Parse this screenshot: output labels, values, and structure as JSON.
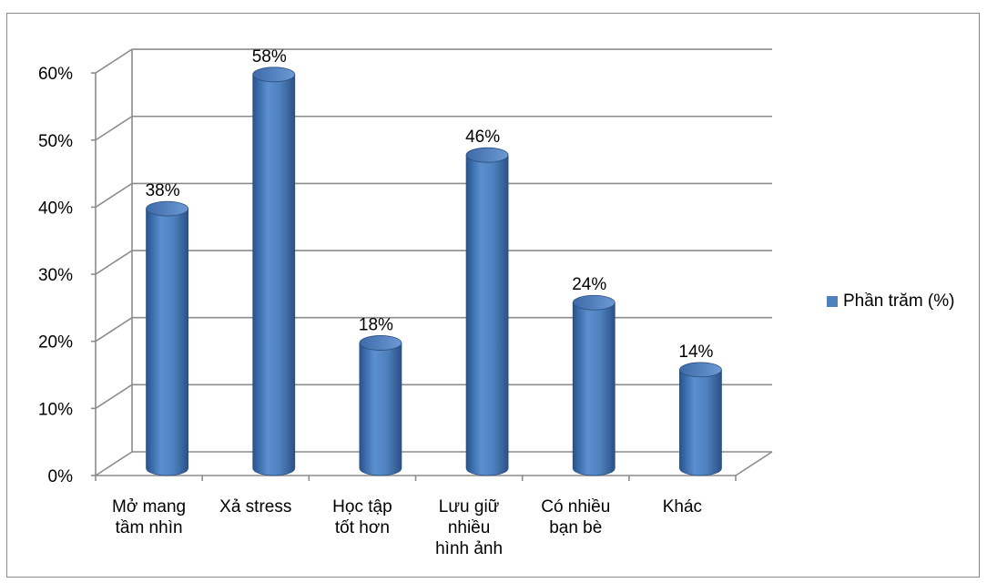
{
  "chart_data": {
    "type": "bar",
    "categories": [
      [
        "Mở mang",
        "tầm nhìn"
      ],
      [
        "Xả stress"
      ],
      [
        "Học tập",
        "tốt hơn"
      ],
      [
        "Lưu giữ",
        "nhiều",
        "hình ảnh"
      ],
      [
        "Có nhiều",
        "bạn bè"
      ],
      [
        "Khác"
      ]
    ],
    "series": [
      {
        "name": "Phần trăm (%)",
        "values": [
          38,
          58,
          18,
          46,
          24,
          14
        ],
        "value_labels": [
          "38%",
          "58%",
          "18%",
          "46%",
          "24%",
          "14%"
        ]
      }
    ],
    "ylim": [
      0,
      60
    ],
    "yticks": [
      "0%",
      "10%",
      "20%",
      "30%",
      "40%",
      "50%",
      "60%"
    ],
    "grid": true,
    "legend_position": "right",
    "bar_shape": "3d-cylinder",
    "color": "#4f81bd"
  }
}
